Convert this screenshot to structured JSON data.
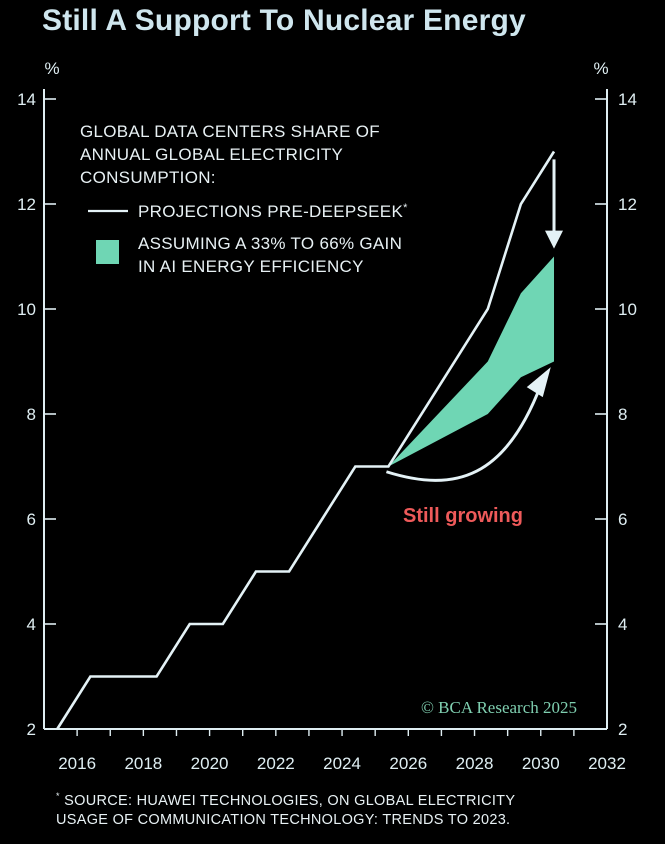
{
  "title": "Still A Support To Nuclear Energy",
  "unit_left": "%",
  "unit_right": "%",
  "legend": {
    "heading_lines": [
      "GLOBAL DATA CENTERS SHARE OF",
      "ANNUAL GLOBAL ELECTRICITY",
      "CONSUMPTION:"
    ],
    "line_label": "PROJECTIONS PRE-DEEPSEEK",
    "line_label_mark": "*",
    "band_label_lines": [
      "ASSUMING A 33% TO 66% GAIN",
      "IN AI ENERGY EFFICIENCY"
    ]
  },
  "annotation": "Still growing",
  "watermark": "© BCA Research 2025",
  "footnote": {
    "mark": "*",
    "line1": " SOURCE: HUAWEI TECHNOLOGIES, ON GLOBAL ELECTRICITY",
    "line2": "USAGE OF COMMUNICATION TECHNOLOGY: TRENDS TO 2023."
  },
  "colors": {
    "background": "#000000",
    "axis": "#dfeef2",
    "line": "#e4f2f6",
    "band": "#6fd6b4",
    "annotation": "#ee5a5a",
    "watermark": "#7fcfb0"
  },
  "chart_data": {
    "type": "line",
    "title": "Still A Support To Nuclear Energy",
    "ylabel": "%",
    "xlim": [
      2015,
      2032
    ],
    "ylim": [
      2,
      14
    ],
    "x_ticks": [
      2016,
      2018,
      2020,
      2022,
      2024,
      2026,
      2028,
      2030,
      2032
    ],
    "y_ticks": [
      2,
      4,
      6,
      8,
      10,
      12,
      14
    ],
    "series": [
      {
        "name": "PROJECTIONS PRE-DEEPSEEK",
        "type": "line",
        "points": [
          [
            2015.4,
            2.0
          ],
          [
            2016.4,
            3.0
          ],
          [
            2017.4,
            3.0
          ],
          [
            2018.4,
            3.0
          ],
          [
            2019.4,
            4.0
          ],
          [
            2020.4,
            4.0
          ],
          [
            2021.4,
            5.0
          ],
          [
            2022.4,
            5.0
          ],
          [
            2023.4,
            6.0
          ],
          [
            2024.4,
            7.0
          ],
          [
            2025.4,
            7.0
          ],
          [
            2028.4,
            10.0
          ],
          [
            2029.4,
            12.0
          ],
          [
            2030.4,
            13.0
          ]
        ]
      },
      {
        "name": "ASSUMING A 33% TO 66% GAIN IN AI ENERGY EFFICIENCY",
        "type": "band",
        "x": [
          2025.4,
          2028.4,
          2029.4,
          2030.4
        ],
        "upper": [
          7.0,
          9.0,
          10.3,
          11.0
        ],
        "lower": [
          7.0,
          8.0,
          8.7,
          9.0
        ]
      }
    ]
  }
}
